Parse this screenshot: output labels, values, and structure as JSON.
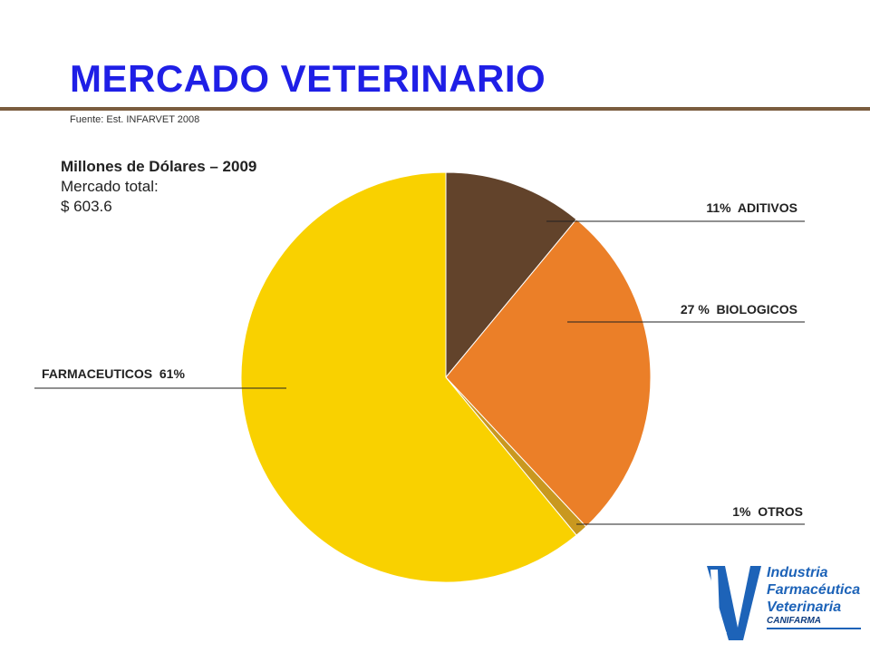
{
  "title": "MERCADO VETERINARIO",
  "source": "Fuente: Est. INFARVET 2008",
  "info": {
    "line1": "Millones de Dólares – 2009",
    "line2": "Mercado total:",
    "line3": "$  603.6"
  },
  "colors": {
    "title": "#1f1fe6",
    "rule": "#7a5c3e",
    "aditivos": "#62432b",
    "biologicos": "#eb7f28",
    "otros": "#c9981f",
    "farmaceuticos": "#f9d100"
  },
  "chart_data": {
    "type": "pie",
    "title": "",
    "slices": [
      {
        "name": "ADITIVOS",
        "value": 11,
        "label": "11%  ADITIVOS",
        "color": "#62432b"
      },
      {
        "name": "BIOLOGICOS",
        "value": 27,
        "label": "27 %  BIOLOGICOS",
        "color": "#eb7f28"
      },
      {
        "name": "OTROS",
        "value": 1,
        "label": "1%  OTROS",
        "color": "#c9981f"
      },
      {
        "name": "FARMACEUTICOS",
        "value": 61,
        "label": "FARMACEUTICOS  61%",
        "color": "#f9d100"
      }
    ]
  },
  "logo": {
    "line1": "Industria",
    "line2": "Farmacéutica",
    "line3": "Veterinaria",
    "line4": "CANIFARMA"
  }
}
